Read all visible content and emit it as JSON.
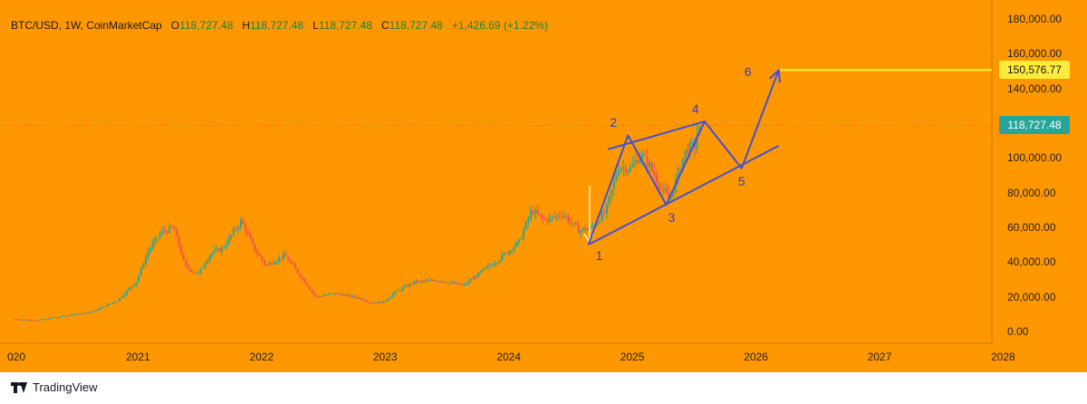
{
  "legend": {
    "symbol": "BTC/USD, 1W, CoinMarketCap",
    "open_key": "O",
    "open": "118,727.48",
    "high_key": "H",
    "high": "118,727.48",
    "low_key": "L",
    "low": "118,727.48",
    "close_key": "C",
    "close": "118,727.48",
    "change": "+1,426.69 (+1.22%)"
  },
  "price_tags": {
    "target": "150,576.77",
    "current": "118,727.48"
  },
  "footer": {
    "brand": "TradingView"
  },
  "colors": {
    "background": "#FF9800",
    "bull": "#26a69a",
    "bear": "#ef5350",
    "projection": "#3f51d8",
    "target_line": "#ffeb3b",
    "current_tag": "#26a69a"
  },
  "chart_data": {
    "type": "candlestick",
    "symbol": "BTC/USD",
    "interval": "1W",
    "ylim": [
      0,
      180000
    ],
    "yticks": [
      0,
      20000,
      40000,
      60000,
      80000,
      100000,
      120000,
      140000,
      160000,
      180000
    ],
    "ytick_labels": [
      "0.00",
      "20,000.00",
      "40,000.00",
      "60,000.00",
      "80,000.00",
      "100,000.00",
      "120,000.00",
      "140,000.00",
      "160,000.00",
      "180,000.00"
    ],
    "x_tick_labels": [
      "020",
      "2021",
      "2022",
      "2023",
      "2024",
      "2025",
      "2026",
      "2027",
      "2028"
    ],
    "x_tick_years": [
      2020.0,
      2021.0,
      2022.0,
      2023.0,
      2024.0,
      2025.0,
      2026.0,
      2027.0,
      2028.0
    ],
    "xlim": [
      2019.97,
      2028.2
    ],
    "price_path": [
      [
        2020.0,
        7200
      ],
      [
        2020.2,
        6500
      ],
      [
        2020.45,
        9300
      ],
      [
        2020.65,
        11500
      ],
      [
        2020.85,
        18000
      ],
      [
        2021.0,
        29000
      ],
      [
        2021.1,
        47000
      ],
      [
        2021.2,
        57000
      ],
      [
        2021.3,
        60000
      ],
      [
        2021.4,
        37000
      ],
      [
        2021.5,
        33000
      ],
      [
        2021.6,
        45000
      ],
      [
        2021.7,
        48000
      ],
      [
        2021.85,
        64000
      ],
      [
        2021.95,
        48000
      ],
      [
        2022.05,
        38000
      ],
      [
        2022.2,
        44000
      ],
      [
        2022.35,
        30000
      ],
      [
        2022.45,
        20000
      ],
      [
        2022.6,
        22000
      ],
      [
        2022.8,
        19500
      ],
      [
        2022.9,
        16500
      ],
      [
        2023.0,
        17000
      ],
      [
        2023.1,
        23000
      ],
      [
        2023.25,
        28500
      ],
      [
        2023.45,
        29500
      ],
      [
        2023.65,
        26500
      ],
      [
        2023.8,
        35000
      ],
      [
        2023.95,
        42500
      ],
      [
        2024.1,
        52000
      ],
      [
        2024.2,
        70000
      ],
      [
        2024.3,
        64000
      ],
      [
        2024.45,
        68000
      ],
      [
        2024.58,
        58000
      ],
      [
        2024.68,
        60000
      ],
      [
        2024.8,
        69000
      ],
      [
        2024.9,
        95000
      ],
      [
        2025.0,
        94000
      ],
      [
        2025.08,
        102000
      ],
      [
        2025.15,
        96000
      ],
      [
        2025.25,
        82000
      ],
      [
        2025.32,
        76000
      ],
      [
        2025.4,
        95000
      ],
      [
        2025.45,
        105000
      ],
      [
        2025.52,
        107000
      ],
      [
        2025.55,
        118727
      ]
    ],
    "wave_path": [
      {
        "label": "1",
        "year": 2024.64,
        "value": 50000
      },
      {
        "label": "2",
        "year": 2024.96,
        "value": 113000
      },
      {
        "label": "3",
        "year": 2025.27,
        "value": 73000
      },
      {
        "label": "4",
        "year": 2025.58,
        "value": 121000
      },
      {
        "label": "5",
        "year": 2025.88,
        "value": 94000
      },
      {
        "label": "6",
        "year": 2026.18,
        "value": 150577
      }
    ],
    "channel_lower": [
      [
        2024.64,
        50000
      ],
      [
        2026.18,
        107000
      ]
    ],
    "channel_upper": [
      [
        2024.8,
        105000
      ],
      [
        2025.58,
        121000
      ]
    ],
    "vertical_marker": {
      "year": 2024.65,
      "from": 84000,
      "to": 52000
    },
    "target_level": 150576.77,
    "current_price": 118727.48
  }
}
